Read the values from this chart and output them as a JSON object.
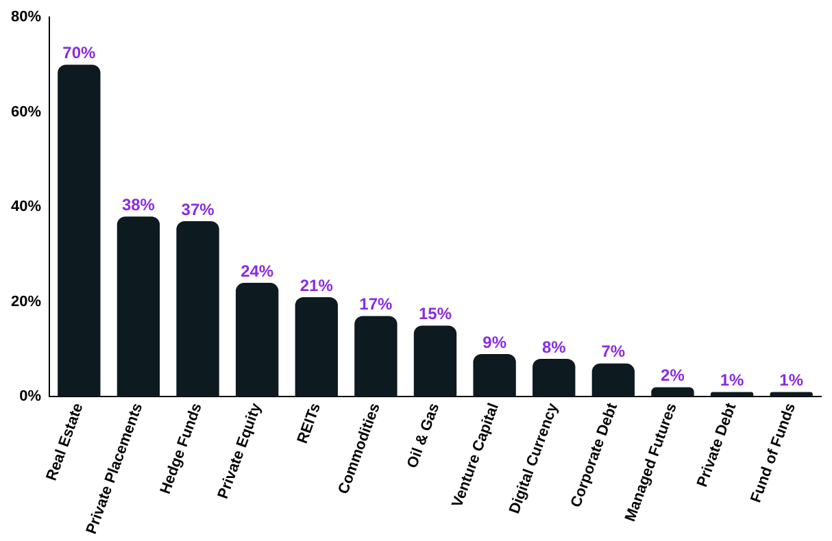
{
  "chart_data": {
    "type": "bar",
    "categories": [
      "Real Estate",
      "Private Placements",
      "Hedge Funds",
      "Private Equity",
      "REITs",
      "Commodities",
      "Oil & Gas",
      "Venture Capital",
      "Digital Currency",
      "Corporate Debt",
      "Managed Futures",
      "Private Debt",
      "Fund of Funds"
    ],
    "values": [
      70,
      38,
      37,
      24,
      21,
      17,
      15,
      9,
      8,
      7,
      2,
      1,
      1
    ],
    "value_labels": [
      "70%",
      "38%",
      "37%",
      "24%",
      "21%",
      "17%",
      "15%",
      "9%",
      "8%",
      "7%",
      "2%",
      "1%",
      "1%"
    ],
    "color": "#0d1a1f",
    "ylim": [
      0,
      80
    ],
    "yticks": [
      {
        "value": 0,
        "label": "0%"
      },
      {
        "value": 20,
        "label": "20%"
      },
      {
        "value": 40,
        "label": "40%"
      },
      {
        "value": 60,
        "label": "60%"
      },
      {
        "value": 80,
        "label": "80%"
      }
    ],
    "grid": false,
    "legend": false
  }
}
